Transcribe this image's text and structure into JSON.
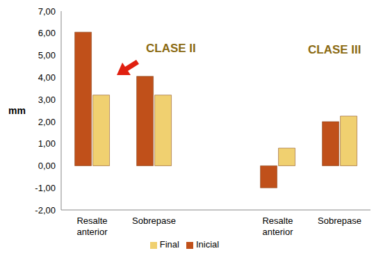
{
  "chart_data": {
    "type": "bar",
    "categories": [
      "Resalte anterior",
      "Sobrepase",
      null,
      "Resalte anterior",
      "Sobrepase"
    ],
    "series": [
      {
        "name": "Inicial",
        "color": "#c0501a",
        "values": [
          6.05,
          4.05,
          null,
          -1.0,
          2.0
        ]
      },
      {
        "name": "Final",
        "color": "#f0d070",
        "values": [
          3.2,
          3.2,
          null,
          0.8,
          2.25
        ]
      }
    ],
    "y_label": "mm",
    "ylim": [
      -2,
      7
    ],
    "yticks": [
      {
        "value": -2,
        "label": "-2,00"
      },
      {
        "value": -1,
        "label": "-1,00"
      },
      {
        "value": 0,
        "label": "0,00"
      },
      {
        "value": 1,
        "label": "1,00"
      },
      {
        "value": 2,
        "label": "2,00"
      },
      {
        "value": 3,
        "label": "3,00"
      },
      {
        "value": 4,
        "label": "4,00"
      },
      {
        "value": 5,
        "label": "5,00"
      },
      {
        "value": 6,
        "label": "6,00"
      },
      {
        "value": 7,
        "label": "7,00"
      }
    ],
    "annotations": [
      "CLASE II",
      "CLASE III"
    ],
    "legend": "bottom",
    "grid": false
  }
}
